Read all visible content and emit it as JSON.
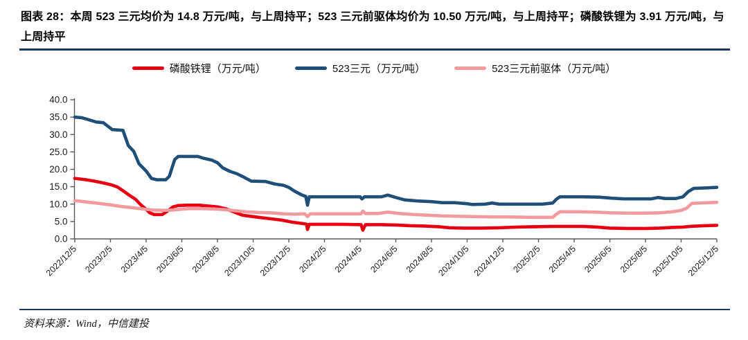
{
  "header": {
    "title": "图表 28：本周 523 三元均价为 14.8 万元/吨，与上周持平；523 三元前驱体均价为 10.50 万元/吨，与上周持平；磷酸铁锂为 3.91 万元/吨，与上周持平"
  },
  "footer": {
    "source": "资料来源：Wind，中信建投"
  },
  "colors": {
    "rule": "#17375e",
    "axis": "#595959",
    "red": "#e60012",
    "blue": "#1f4e79",
    "pink": "#f29a9e"
  },
  "chart_data": {
    "type": "line",
    "title": "",
    "xlabel": "",
    "ylabel": "",
    "x_unit": "months since 2022/12/5",
    "ylim": [
      0,
      40
    ],
    "grid": false,
    "legend_position": "top",
    "y_tick_values": [
      0,
      5,
      10,
      15,
      20,
      25,
      30,
      35,
      40
    ],
    "y_tick_labels": [
      "0.0",
      "5.0",
      "10.0",
      "15.0",
      "20.0",
      "25.0",
      "30.0",
      "35.0",
      "40.0"
    ],
    "x_tick_months": [
      0,
      2,
      4,
      6,
      8,
      10,
      12,
      14,
      16,
      18,
      20,
      22,
      24,
      26,
      28,
      30,
      32,
      34,
      36
    ],
    "x_tick_labels": [
      "2022/12/5",
      "2023/2/5",
      "2023/4/5",
      "2023/6/5",
      "2023/8/5",
      "2023/10/5",
      "2023/12/5",
      "2024/2/5",
      "2024/4/5",
      "2024/6/5",
      "2024/8/5",
      "2024/10/5",
      "2024/12/5",
      "2025/2/5",
      "2025/4/5",
      "2025/6/5",
      "2025/8/5",
      "2025/10/5",
      "2025/12/5"
    ],
    "series": [
      {
        "name": "磷酸铁锂（万元/吨）",
        "color_key": "red",
        "latest_value": 3.91,
        "points": [
          [
            0,
            17.4
          ],
          [
            0.5,
            17.1
          ],
          [
            1,
            16.7
          ],
          [
            1.5,
            16.2
          ],
          [
            2,
            15.6
          ],
          [
            2.4,
            14.9
          ],
          [
            2.8,
            13.5
          ],
          [
            3.1,
            12.4
          ],
          [
            3.4,
            11.4
          ],
          [
            3.7,
            9.8
          ],
          [
            4,
            8.5
          ],
          [
            4.2,
            7.5
          ],
          [
            4.45,
            7.0
          ],
          [
            4.9,
            7.0
          ],
          [
            5.2,
            8.0
          ],
          [
            5.5,
            9.2
          ],
          [
            5.8,
            9.6
          ],
          [
            6.3,
            9.7
          ],
          [
            7,
            9.7
          ],
          [
            7.4,
            9.5
          ],
          [
            8,
            9.2
          ],
          [
            8.5,
            8.6
          ],
          [
            8.9,
            7.8
          ],
          [
            9.4,
            6.8
          ],
          [
            10,
            6.4
          ],
          [
            10.8,
            5.9
          ],
          [
            11.6,
            5.4
          ],
          [
            12.2,
            4.8
          ],
          [
            12.8,
            4.4
          ],
          [
            13,
            4.2
          ],
          [
            13.05,
            2.7
          ],
          [
            13.15,
            4.2
          ],
          [
            14,
            4.2
          ],
          [
            15,
            4.2
          ],
          [
            16.05,
            4.1
          ],
          [
            16.15,
            2.5
          ],
          [
            16.3,
            4.1
          ],
          [
            17.2,
            4.1
          ],
          [
            18,
            4.0
          ],
          [
            18.8,
            3.8
          ],
          [
            19.6,
            3.7
          ],
          [
            20.4,
            3.5
          ],
          [
            21,
            3.2
          ],
          [
            21.8,
            3.1
          ],
          [
            22.8,
            3.1
          ],
          [
            23.8,
            3.2
          ],
          [
            24.8,
            3.4
          ],
          [
            25.8,
            3.5
          ],
          [
            26.8,
            3.6
          ],
          [
            27.5,
            3.6
          ],
          [
            28.5,
            3.6
          ],
          [
            29.3,
            3.4
          ],
          [
            30,
            3.1
          ],
          [
            31,
            3.0
          ],
          [
            32,
            3.0
          ],
          [
            32.8,
            3.1
          ],
          [
            33.5,
            3.3
          ],
          [
            34.1,
            3.4
          ],
          [
            34.5,
            3.6
          ],
          [
            34.9,
            3.7
          ],
          [
            35.3,
            3.8
          ],
          [
            36,
            3.91
          ]
        ]
      },
      {
        "name": "523三元（万元/吨）",
        "color_key": "blue",
        "latest_value": 14.8,
        "points": [
          [
            0,
            35.0
          ],
          [
            0.4,
            34.8
          ],
          [
            0.8,
            34.2
          ],
          [
            1.2,
            33.6
          ],
          [
            1.6,
            33.4
          ],
          [
            1.9,
            32.2
          ],
          [
            2.1,
            31.4
          ],
          [
            2.7,
            31.2
          ],
          [
            3,
            26.8
          ],
          [
            3.3,
            25.2
          ],
          [
            3.6,
            21.6
          ],
          [
            4,
            19.5
          ],
          [
            4.3,
            17.4
          ],
          [
            4.6,
            17.0
          ],
          [
            5.1,
            17.0
          ],
          [
            5.3,
            18.0
          ],
          [
            5.6,
            22.8
          ],
          [
            5.8,
            23.7
          ],
          [
            6.9,
            23.7
          ],
          [
            7.2,
            23.2
          ],
          [
            7.7,
            22.6
          ],
          [
            8,
            21.9
          ],
          [
            8.3,
            20.4
          ],
          [
            8.7,
            19.4
          ],
          [
            9.1,
            18.7
          ],
          [
            9.5,
            17.7
          ],
          [
            9.9,
            16.6
          ],
          [
            10.7,
            16.5
          ],
          [
            11.2,
            15.8
          ],
          [
            11.7,
            15.4
          ],
          [
            12,
            14.8
          ],
          [
            12.3,
            13.8
          ],
          [
            12.7,
            12.7
          ],
          [
            12.95,
            12.2
          ],
          [
            13.05,
            9.7
          ],
          [
            13.15,
            12.1
          ],
          [
            14,
            12.1
          ],
          [
            15,
            12.1
          ],
          [
            16,
            12.1
          ],
          [
            16.1,
            11.5
          ],
          [
            16.25,
            12.1
          ],
          [
            17.2,
            12.1
          ],
          [
            17.55,
            12.6
          ],
          [
            18,
            11.9
          ],
          [
            18.5,
            11.2
          ],
          [
            19.2,
            10.9
          ],
          [
            20,
            10.7
          ],
          [
            20.6,
            10.4
          ],
          [
            21.3,
            10.4
          ],
          [
            22,
            10.1
          ],
          [
            22.3,
            9.9
          ],
          [
            23,
            10.0
          ],
          [
            23.4,
            10.3
          ],
          [
            23.8,
            10.0
          ],
          [
            25,
            10.0
          ],
          [
            26.2,
            10.0
          ],
          [
            26.8,
            10.3
          ],
          [
            27,
            11.4
          ],
          [
            27.2,
            12.1
          ],
          [
            28.4,
            12.1
          ],
          [
            29.4,
            12.0
          ],
          [
            30.1,
            11.7
          ],
          [
            30.8,
            11.5
          ],
          [
            31.6,
            11.5
          ],
          [
            32.3,
            11.5
          ],
          [
            32.7,
            11.9
          ],
          [
            33.1,
            11.6
          ],
          [
            33.7,
            11.6
          ],
          [
            34.1,
            12.1
          ],
          [
            34.4,
            13.6
          ],
          [
            34.7,
            14.5
          ],
          [
            35.2,
            14.6
          ],
          [
            36,
            14.8
          ]
        ]
      },
      {
        "name": "523三元前驱体（万元/吨）",
        "color_key": "pink",
        "latest_value": 10.5,
        "points": [
          [
            0,
            11.0
          ],
          [
            0.5,
            10.7
          ],
          [
            1,
            10.4
          ],
          [
            1.5,
            10.1
          ],
          [
            2,
            9.8
          ],
          [
            2.5,
            9.4
          ],
          [
            3,
            9.1
          ],
          [
            3.5,
            8.8
          ],
          [
            4,
            8.5
          ],
          [
            4.4,
            8.3
          ],
          [
            5,
            8.2
          ],
          [
            5.5,
            8.3
          ],
          [
            5.9,
            8.5
          ],
          [
            6.4,
            8.7
          ],
          [
            7.2,
            8.7
          ],
          [
            7.8,
            8.6
          ],
          [
            8.4,
            8.4
          ],
          [
            9,
            8.1
          ],
          [
            9.6,
            7.8
          ],
          [
            10.3,
            7.6
          ],
          [
            11,
            7.5
          ],
          [
            11.7,
            7.2
          ],
          [
            12.3,
            7.1
          ],
          [
            12.9,
            7.2
          ],
          [
            13.05,
            6.4
          ],
          [
            13.2,
            7.2
          ],
          [
            14,
            7.2
          ],
          [
            15,
            7.2
          ],
          [
            16.05,
            7.2
          ],
          [
            16.15,
            8.0
          ],
          [
            16.3,
            7.3
          ],
          [
            17,
            7.3
          ],
          [
            17.55,
            7.7
          ],
          [
            18.2,
            7.3
          ],
          [
            19,
            7.0
          ],
          [
            19.8,
            6.8
          ],
          [
            20.6,
            6.6
          ],
          [
            21.5,
            6.5
          ],
          [
            22.5,
            6.4
          ],
          [
            23.5,
            6.3
          ],
          [
            24.5,
            6.3
          ],
          [
            25.5,
            6.2
          ],
          [
            26.8,
            6.2
          ],
          [
            27,
            7.1
          ],
          [
            27.2,
            7.8
          ],
          [
            28.2,
            7.8
          ],
          [
            29.2,
            7.7
          ],
          [
            30,
            7.5
          ],
          [
            31,
            7.4
          ],
          [
            32,
            7.4
          ],
          [
            32.8,
            7.5
          ],
          [
            33.5,
            7.8
          ],
          [
            34,
            8.2
          ],
          [
            34.3,
            8.8
          ],
          [
            34.6,
            10.2
          ],
          [
            35,
            10.3
          ],
          [
            35.5,
            10.4
          ],
          [
            36,
            10.5
          ]
        ]
      }
    ]
  }
}
